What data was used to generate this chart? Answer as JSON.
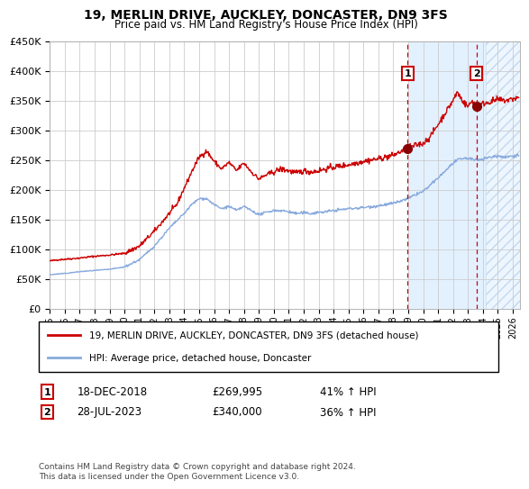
{
  "title": "19, MERLIN DRIVE, AUCKLEY, DONCASTER, DN9 3FS",
  "subtitle": "Price paid vs. HM Land Registry's House Price Index (HPI)",
  "ylim": [
    0,
    450000
  ],
  "xlim_start": 1995.0,
  "xlim_end": 2026.5,
  "yticks": [
    0,
    50000,
    100000,
    150000,
    200000,
    250000,
    300000,
    350000,
    400000,
    450000
  ],
  "ytick_labels": [
    "£0",
    "£50K",
    "£100K",
    "£150K",
    "£200K",
    "£250K",
    "£300K",
    "£350K",
    "£400K",
    "£450K"
  ],
  "xtick_years": [
    1995,
    1996,
    1997,
    1998,
    1999,
    2000,
    2001,
    2002,
    2003,
    2004,
    2005,
    2006,
    2007,
    2008,
    2009,
    2010,
    2011,
    2012,
    2013,
    2014,
    2015,
    2016,
    2017,
    2018,
    2019,
    2020,
    2021,
    2022,
    2023,
    2024,
    2025,
    2026
  ],
  "red_line_color": "#cc0000",
  "blue_line_color": "#88aadd",
  "point1_x": 2018.96,
  "point1_y": 269995,
  "point1_date": "18-DEC-2018",
  "point1_price": "£269,995",
  "point1_hpi": "41% ↑ HPI",
  "point2_x": 2023.57,
  "point2_y": 340000,
  "point2_date": "28-JUL-2023",
  "point2_price": "£340,000",
  "point2_hpi": "36% ↑ HPI",
  "shade_start": 2019.0,
  "hatch_start": 2024.17,
  "hatch_end": 2026.5,
  "legend_label_red": "19, MERLIN DRIVE, AUCKLEY, DONCASTER, DN9 3FS (detached house)",
  "legend_label_blue": "HPI: Average price, detached house, Doncaster",
  "footer": "Contains HM Land Registry data © Crown copyright and database right 2024.\nThis data is licensed under the Open Government Licence v3.0.",
  "bg_color": "#ffffff",
  "grid_color": "#cccccc",
  "shade_color": "#ddeeff",
  "marker_color": "#880000"
}
